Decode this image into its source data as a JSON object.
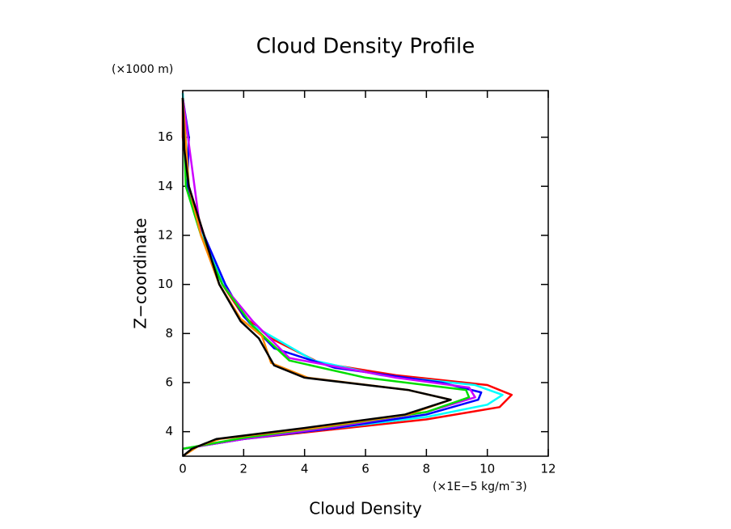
{
  "chart_data": {
    "type": "line",
    "title": "Cloud Density Profile",
    "y_unit": "(×1000 m)",
    "x_unit": "(×1E−5 kg/m¯3)",
    "ylabel": "Z−coordinate",
    "xlabel": "Cloud Density",
    "xlim": [
      0,
      12
    ],
    "xticks": [
      0,
      2,
      4,
      6,
      8,
      10,
      12
    ],
    "ylim": [
      3,
      17.9
    ],
    "yticks": [
      4,
      6,
      8,
      10,
      12,
      14,
      16
    ],
    "series": [
      {
        "color": "#ff0000",
        "x": [
          0,
          2,
          5,
          8,
          10.4,
          10.8,
          10,
          7,
          4.5,
          2.9,
          2.0,
          1.3,
          0.7,
          0.2,
          0,
          0
        ],
        "values": [
          3.3,
          3.7,
          4.1,
          4.5,
          5.0,
          5.5,
          5.9,
          6.3,
          6.8,
          7.8,
          8.7,
          10,
          12,
          14,
          16,
          17.6
        ]
      },
      {
        "color": "#00ffff",
        "x": [
          0,
          2,
          5,
          8,
          10,
          10.5,
          9.6,
          6.5,
          4.3,
          2.2,
          1.5,
          0.8,
          0.2,
          0
        ],
        "values": [
          3.3,
          3.7,
          4.15,
          4.6,
          5.1,
          5.5,
          5.9,
          6.3,
          6.9,
          8.4,
          9.7,
          11.5,
          14,
          17.8
        ]
      },
      {
        "color": "#0000ff",
        "x": [
          0,
          2,
          5,
          8,
          9.7,
          9.8,
          8.5,
          5,
          3,
          2,
          1.4,
          0.7,
          0.15,
          0.2,
          0
        ],
        "values": [
          3.3,
          3.7,
          4.15,
          4.7,
          5.3,
          5.6,
          6,
          6.6,
          7.4,
          8.7,
          10,
          12,
          14,
          16,
          17.6
        ]
      },
      {
        "color": "#cc00ff",
        "x": [
          0,
          2,
          5,
          8,
          9.6,
          9.4,
          7,
          3.5,
          2.3,
          1.3,
          0.6,
          0
        ],
        "values": [
          3.3,
          3.7,
          4.2,
          4.8,
          5.4,
          5.8,
          6.2,
          7,
          8.5,
          10,
          12,
          17.6
        ]
      },
      {
        "color": "#00dd00",
        "x": [
          0,
          2,
          5,
          8,
          9.4,
          9.3,
          6,
          3.5,
          2.3,
          1.3,
          0.6,
          0.1,
          0
        ],
        "values": [
          3.3,
          3.75,
          4.25,
          4.8,
          5.4,
          5.7,
          6.2,
          6.9,
          8.3,
          10,
          12,
          14,
          17.6
        ]
      },
      {
        "color": "#ff8800",
        "x": [
          0,
          0.5,
          1.2,
          4.3,
          7.4,
          8.8,
          7.4,
          4.1,
          2.9,
          2.6,
          1.9,
          1.2,
          0.6,
          0.2,
          0
        ],
        "values": [
          3.0,
          3.4,
          3.7,
          4.15,
          4.7,
          5.3,
          5.7,
          6.2,
          6.8,
          7.9,
          8.6,
          10,
          12,
          14,
          17.6
        ]
      },
      {
        "color": "#000000",
        "x": [
          0,
          0.3,
          1.1,
          4,
          7.3,
          8.8,
          7.4,
          4,
          3,
          2.5,
          1.9,
          1.2,
          0.7,
          0.2,
          0.05,
          0
        ],
        "values": [
          3.0,
          3.3,
          3.7,
          4.15,
          4.7,
          5.3,
          5.7,
          6.2,
          6.7,
          7.8,
          8.5,
          10,
          12,
          14,
          15.5,
          17.6
        ]
      }
    ]
  }
}
